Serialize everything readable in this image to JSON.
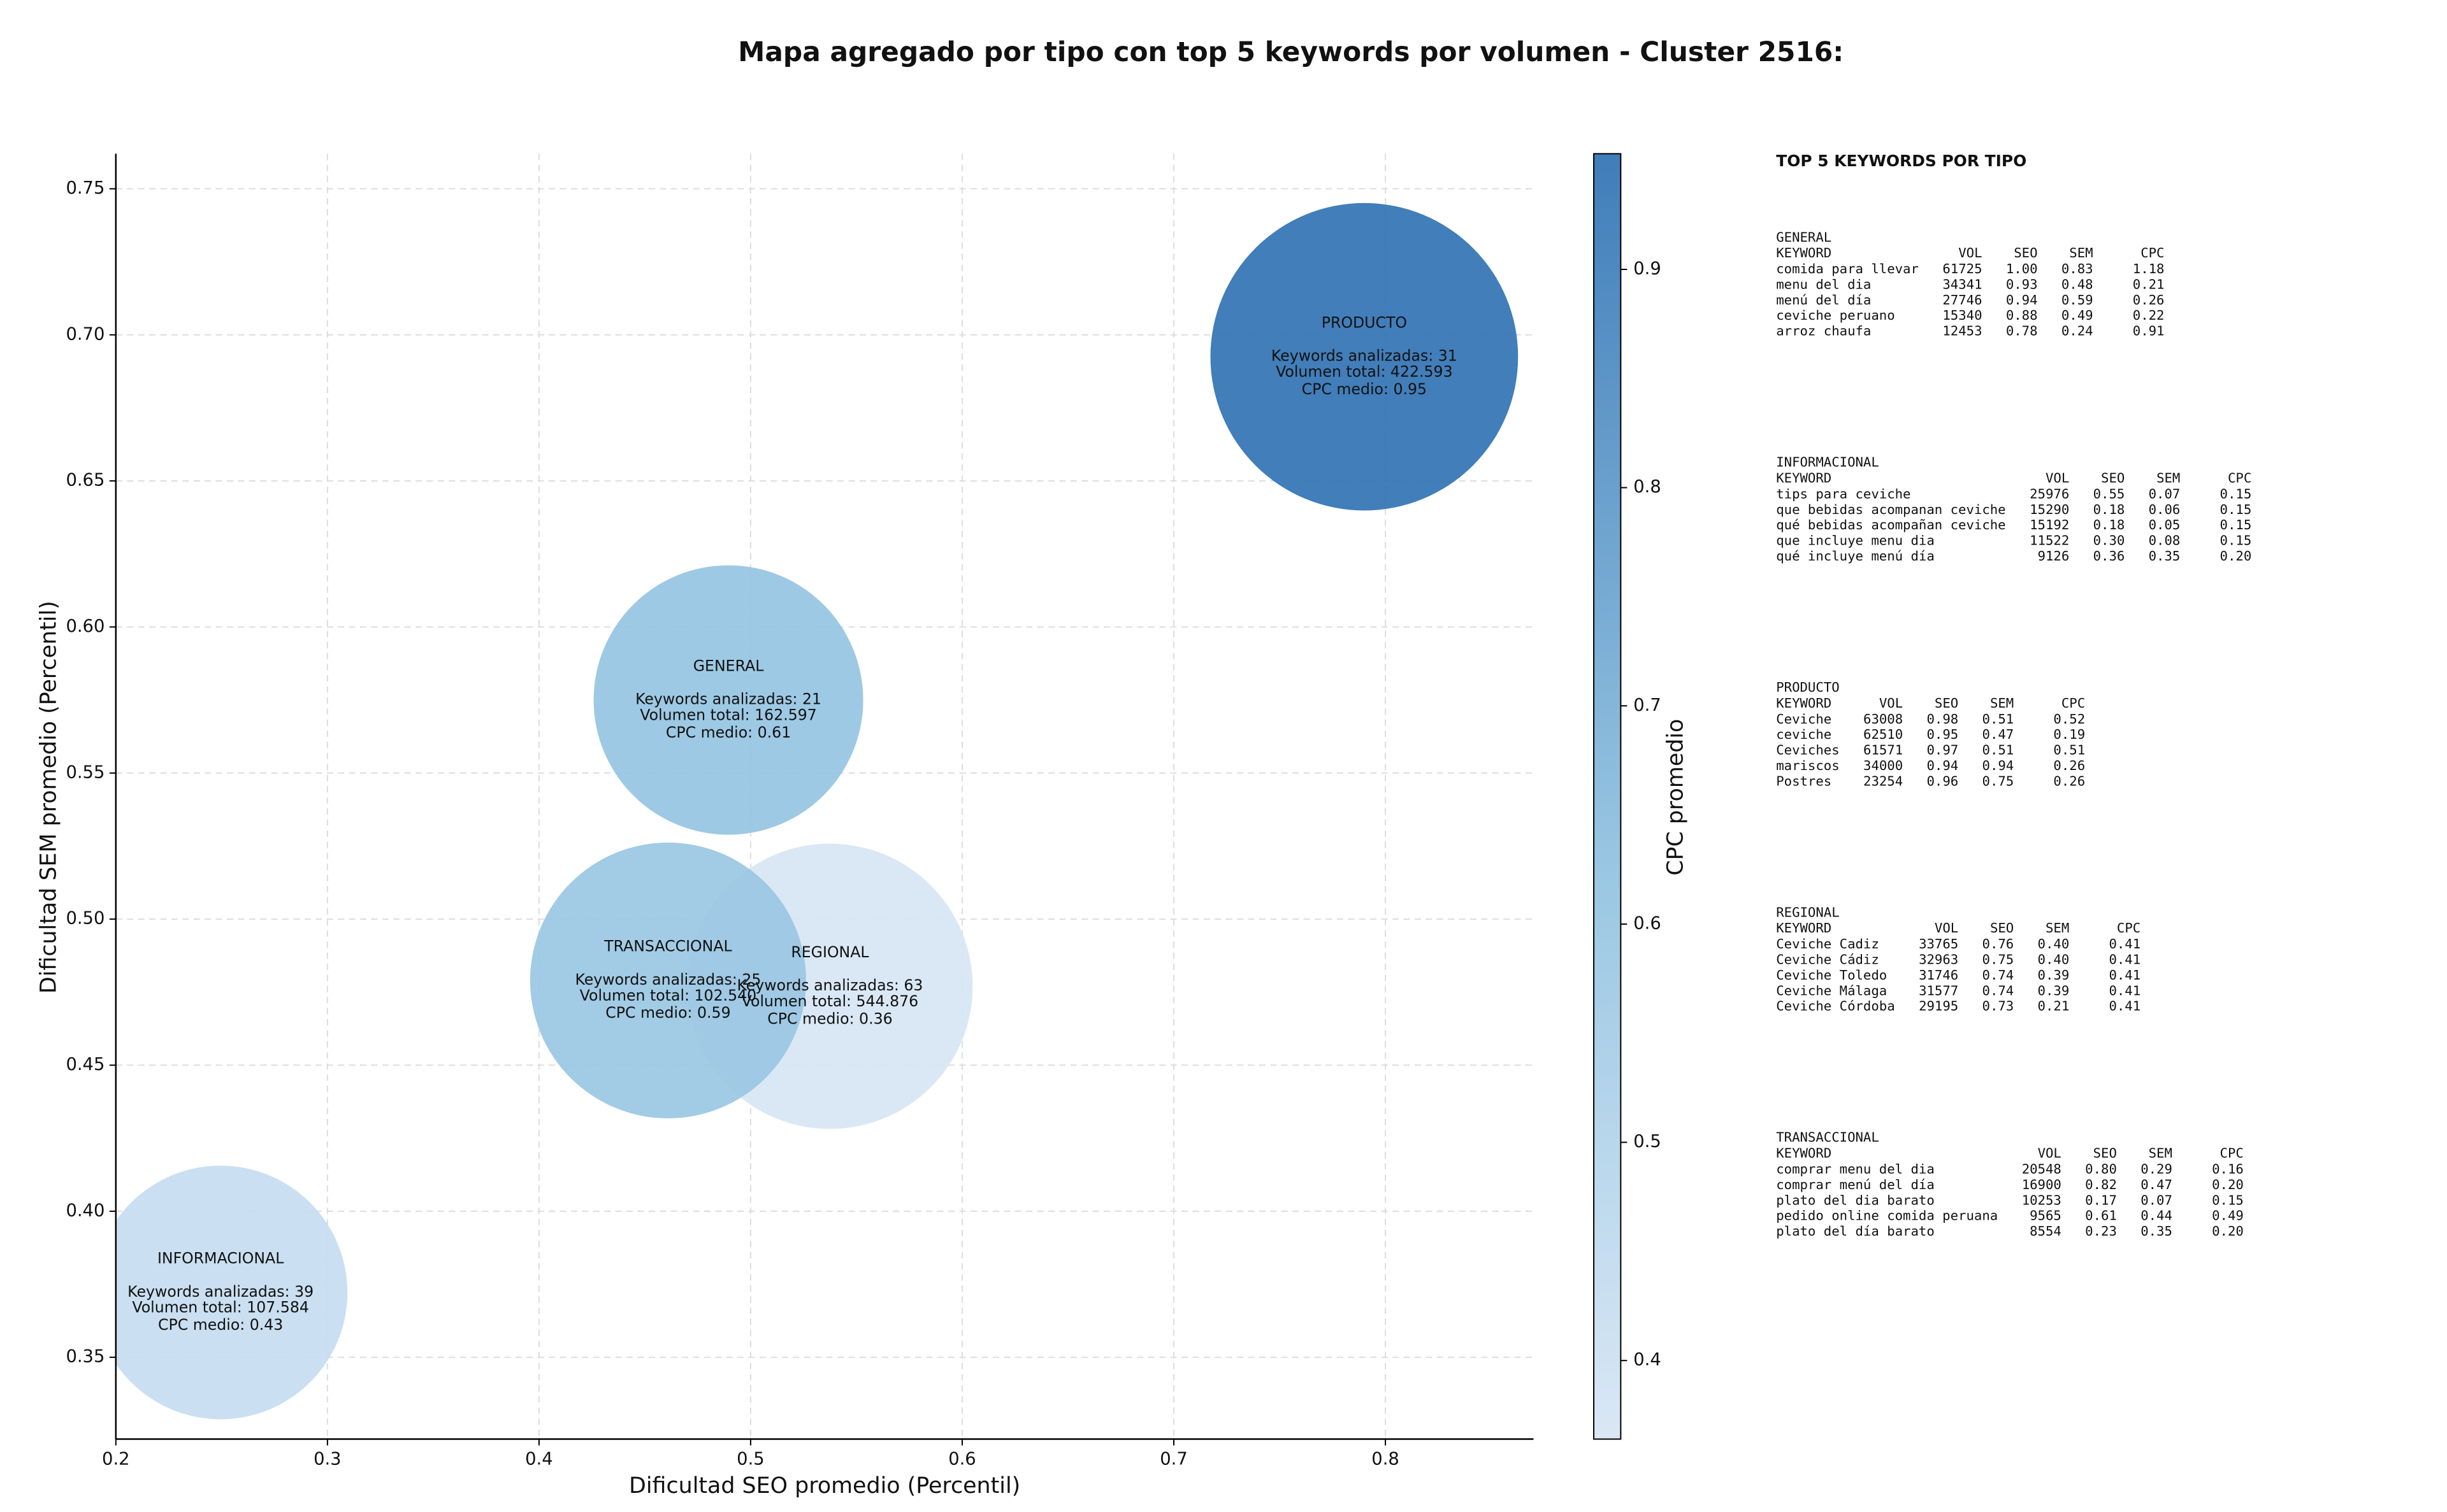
{
  "chart_data": {
    "type": "bubble",
    "title": "Mapa agregado por tipo con top 5 keywords por volumen - Cluster 2516:",
    "x_label": "Dificultad SEO promedio (Percentil)",
    "y_label": "Dificultad SEM promedio (Percentil)",
    "x": [
      0.4895,
      0.2495,
      0.79,
      0.5375,
      0.461
    ],
    "y": [
      0.575,
      0.3722,
      0.6925,
      0.477,
      0.479
    ],
    "sizes": [
      85,
      80,
      97,
      90,
      87
    ],
    "cpc": [
      0.61,
      0.43,
      0.95,
      0.36,
      0.59
    ],
    "annotations": [
      [
        "GENERAL",
        "Keywords analizadas: 21",
        "Volumen total: 162.597",
        "CPC medio: 0.61"
      ],
      [
        "INFORMACIONAL",
        "Keywords analizadas: 39",
        "Volumen total: 107.584",
        "CPC medio: 0.43"
      ],
      [
        "PRODUCTO",
        "Keywords analizadas: 31",
        "Volumen total: 422.593",
        "CPC medio: 0.95"
      ],
      [
        "REGIONAL",
        "Keywords analizadas: 63",
        "Volumen total: 544.876",
        "CPC medio: 0.36"
      ],
      [
        "TRANSACCIONAL",
        "Keywords analizadas: 25",
        "Volumen total: 102.540",
        "CPC medio: 0.59"
      ]
    ],
    "xlim": [
      0.2,
      0.87
    ],
    "ylim": [
      0.322,
      0.762
    ],
    "xticks": [
      0.2,
      0.3,
      0.4,
      0.5,
      0.6,
      0.7,
      0.8
    ],
    "yticks": [
      0.35,
      {
        "value": 0.4,
        "label": "0.40"
      },
      0.45,
      {
        "value": 0.5,
        "label": "0.50"
      },
      0.55,
      {
        "value": 0.6,
        "label": "0.60"
      },
      0.65,
      {
        "value": 0.7,
        "label": "0.70"
      },
      0.75
    ],
    "grid": true,
    "colormap": [
      {
        "at": 0,
        "color": "#d6e5f4"
      },
      {
        "at": 0.45,
        "color": "#8dc0df"
      },
      {
        "at": 1,
        "color": "#2b6fb2"
      }
    ],
    "colorbar": {
      "label": "CPC promedio",
      "lim": [
        0.364,
        0.953
      ],
      "ticks": [
        0.4,
        0.5,
        0.6,
        0.7,
        0.8,
        0.9
      ]
    }
  },
  "side_panel": {
    "title": "TOP 5 KEYWORDS POR TIPO",
    "tables": [
      {
        "title": "GENERAL",
        "columns": [
          "KEYWORD",
          "VOL",
          "SEO",
          "SEM",
          "CPC"
        ],
        "rows": [
          [
            "comida para llevar",
            "61725",
            "1.00",
            "0.83",
            "1.18"
          ],
          [
            "menu del dia",
            "34341",
            "0.93",
            "0.48",
            "0.21"
          ],
          [
            "menú del día",
            "27746",
            "0.94",
            "0.59",
            "0.26"
          ],
          [
            "ceviche peruano",
            "15340",
            "0.88",
            "0.49",
            "0.22"
          ],
          [
            "arroz chaufa",
            "12453",
            "0.78",
            "0.24",
            "0.91"
          ]
        ]
      },
      {
        "title": "INFORMACIONAL",
        "columns": [
          "KEYWORD",
          "VOL",
          "SEO",
          "SEM",
          "CPC"
        ],
        "rows": [
          [
            "tips para ceviche",
            "25976",
            "0.55",
            "0.07",
            "0.15"
          ],
          [
            "que bebidas acompanan ceviche",
            "15290",
            "0.18",
            "0.06",
            "0.15"
          ],
          [
            "qué bebidas acompañan ceviche",
            "15192",
            "0.18",
            "0.05",
            "0.15"
          ],
          [
            "que incluye menu dia",
            "11522",
            "0.30",
            "0.08",
            "0.15"
          ],
          [
            "qué incluye menú día",
            "9126",
            "0.36",
            "0.35",
            "0.20"
          ]
        ]
      },
      {
        "title": "PRODUCTO",
        "columns": [
          "KEYWORD",
          "VOL",
          "SEO",
          "SEM",
          "CPC"
        ],
        "rows": [
          [
            "Ceviche",
            "63008",
            "0.98",
            "0.51",
            "0.52"
          ],
          [
            "ceviche",
            "62510",
            "0.95",
            "0.47",
            "0.19"
          ],
          [
            "Ceviches",
            "61571",
            "0.97",
            "0.51",
            "0.51"
          ],
          [
            "mariscos",
            "34000",
            "0.94",
            "0.94",
            "0.26"
          ],
          [
            "Postres",
            "23254",
            "0.96",
            "0.75",
            "0.26"
          ]
        ]
      },
      {
        "title": "REGIONAL",
        "columns": [
          "KEYWORD",
          "VOL",
          "SEO",
          "SEM",
          "CPC"
        ],
        "rows": [
          [
            "Ceviche Cadiz",
            "33765",
            "0.76",
            "0.40",
            "0.41"
          ],
          [
            "Ceviche Cádiz",
            "32963",
            "0.75",
            "0.40",
            "0.41"
          ],
          [
            "Ceviche Toledo",
            "31746",
            "0.74",
            "0.39",
            "0.41"
          ],
          [
            "Ceviche Málaga",
            "31577",
            "0.74",
            "0.39",
            "0.41"
          ],
          [
            "Ceviche Córdoba",
            "29195",
            "0.73",
            "0.21",
            "0.41"
          ]
        ]
      },
      {
        "title": "TRANSACCIONAL",
        "columns": [
          "KEYWORD",
          "VOL",
          "SEO",
          "SEM",
          "CPC"
        ],
        "rows": [
          [
            "comprar menu del dia",
            "20548",
            "0.80",
            "0.29",
            "0.16"
          ],
          [
            "comprar menú del día",
            "16900",
            "0.82",
            "0.47",
            "0.20"
          ],
          [
            "plato del dia barato",
            "10253",
            "0.17",
            "0.07",
            "0.15"
          ],
          [
            "pedido online comida peruana",
            "9565",
            "0.61",
            "0.44",
            "0.49"
          ],
          [
            "plato del día barato",
            "8554",
            "0.23",
            "0.35",
            "0.20"
          ]
        ]
      }
    ]
  }
}
